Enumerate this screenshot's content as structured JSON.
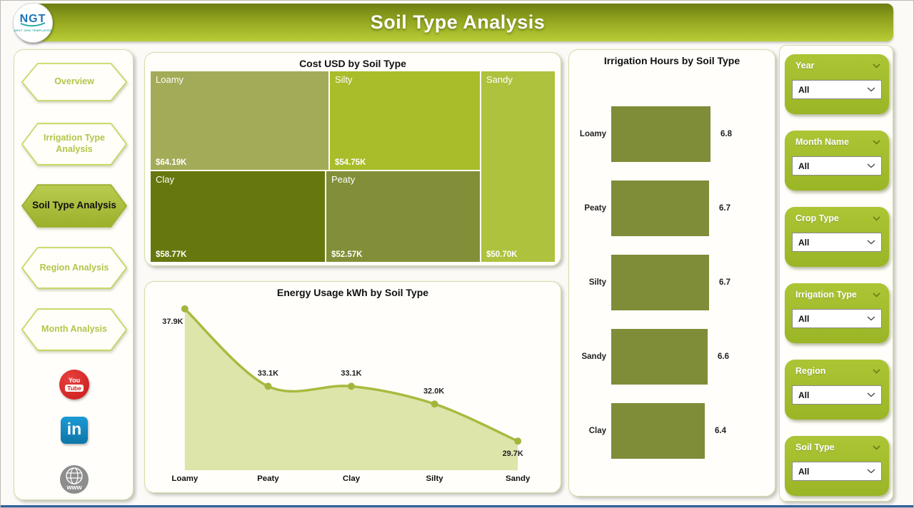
{
  "header": {
    "title": "Soil Type Analysis",
    "logo_text": "NGT",
    "logo_tagline": "NEXT GEN TEMPLATES"
  },
  "sidebar": {
    "items": [
      {
        "label": "Overview",
        "active": false
      },
      {
        "label": "Irrigation Type Analysis",
        "active": false
      },
      {
        "label": "Soil Type Analysis",
        "active": true
      },
      {
        "label": "Region Analysis",
        "active": false
      },
      {
        "label": "Month Analysis",
        "active": false
      }
    ],
    "social": [
      "youtube-icon",
      "linkedin-icon",
      "website-icon"
    ]
  },
  "filters": [
    {
      "label": "Year",
      "value": "All"
    },
    {
      "label": "Month Name",
      "value": "All"
    },
    {
      "label": "Crop Type",
      "value": "All"
    },
    {
      "label": "Irrigation Type",
      "value": "All"
    },
    {
      "label": "Region",
      "value": "All"
    },
    {
      "label": "Soil Type",
      "value": "All"
    }
  ],
  "chart_data": [
    {
      "type": "treemap",
      "title": "Cost USD by Soil Type",
      "items": [
        {
          "label": "Loamy",
          "value": 64190,
          "display": "$64.19K",
          "color": "#a3ab58"
        },
        {
          "label": "Silty",
          "value": 54750,
          "display": "$54.75K",
          "color": "#a9bc2a"
        },
        {
          "label": "Sandy",
          "value": 50700,
          "display": "$50.70K",
          "color": "#aec23e"
        },
        {
          "label": "Clay",
          "value": 58770,
          "display": "$58.77K",
          "color": "#66770d"
        },
        {
          "label": "Peaty",
          "value": 52570,
          "display": "$52.57K",
          "color": "#828f38"
        }
      ]
    },
    {
      "type": "area",
      "title": "Energy Usage kWh by Soil Type",
      "categories": [
        "Loamy",
        "Peaty",
        "Clay",
        "Silty",
        "Sandy"
      ],
      "values": [
        37900,
        33100,
        33100,
        32000,
        29700
      ],
      "labels": [
        "37.9K",
        "33.1K",
        "33.1K",
        "32.0K",
        "29.7K"
      ],
      "legend": "none",
      "grid": "off"
    },
    {
      "type": "bar",
      "title": "Irrigation Hours by Soil Type",
      "orientation": "horizontal",
      "categories": [
        "Loamy",
        "Peaty",
        "Silty",
        "Sandy",
        "Clay"
      ],
      "values": [
        6.8,
        6.7,
        6.7,
        6.6,
        6.4
      ],
      "xlim": [
        0,
        6.8
      ],
      "grid": "off"
    }
  ],
  "colors": {
    "header_gradient_top": "#6e7d12",
    "header_gradient_bottom": "#b9cd36",
    "accent_green": "#a2be2c",
    "bar_fill": "#7f8d38",
    "line": "#a9ba3f",
    "line_marker": "#a2b63d",
    "area_fill": "#dde5ab",
    "youtube_red": "#cd201f",
    "linkedin_blue": "#0e76a8",
    "globe_gray": "#8d8d8d",
    "logo_blue": "#1b74b8",
    "logo_teal": "#2aa9a4"
  }
}
